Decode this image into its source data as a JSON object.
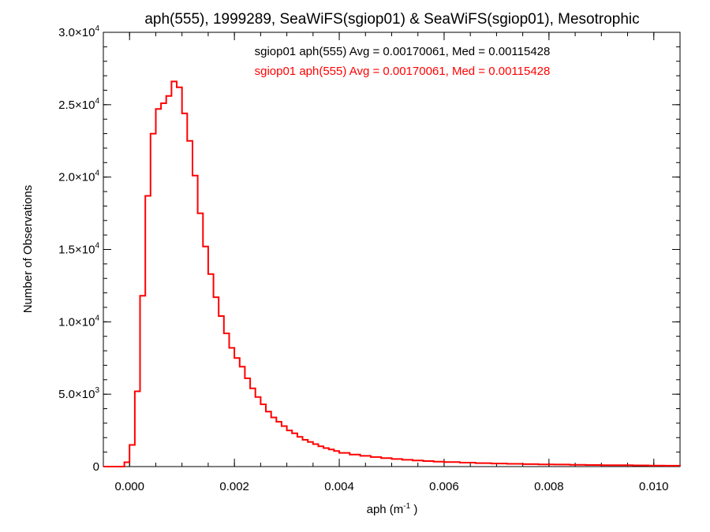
{
  "chart_data": {
    "type": "line",
    "style": "step-histogram",
    "title": "aph(555), 1999289, SeaWiFS(sgiop01) & SeaWiFS(sgiop01), Mesotrophic",
    "xlabel": "aph (m⁻¹)",
    "ylabel": "Number of Observations",
    "xlim": [
      -0.0005,
      0.0105
    ],
    "ylim": [
      0,
      30000
    ],
    "x_ticks": [
      {
        "value": 0.0,
        "label": "0.000"
      },
      {
        "value": 0.002,
        "label": "0.002"
      },
      {
        "value": 0.004,
        "label": "0.004"
      },
      {
        "value": 0.006,
        "label": "0.006"
      },
      {
        "value": 0.008,
        "label": "0.008"
      },
      {
        "value": 0.01,
        "label": "0.010"
      }
    ],
    "y_ticks": [
      {
        "value": 0,
        "mant": "0",
        "exp": ""
      },
      {
        "value": 5000,
        "mant": "5.0×10",
        "exp": "3"
      },
      {
        "value": 10000,
        "mant": "1.0×10",
        "exp": "4"
      },
      {
        "value": 15000,
        "mant": "1.5×10",
        "exp": "4"
      },
      {
        "value": 20000,
        "mant": "2.0×10",
        "exp": "4"
      },
      {
        "value": 25000,
        "mant": "2.5×10",
        "exp": "4"
      },
      {
        "value": 30000,
        "mant": "3.0×10",
        "exp": "4"
      }
    ],
    "annotations": [
      {
        "text": "sgiop01 aph(555) Avg = 0.00170061, Med = 0.00115428",
        "color": "#000000"
      },
      {
        "text": "sgiop01 aph(555) Avg = 0.00170061, Med = 0.00115428",
        "color": "#ff0000"
      }
    ],
    "series": [
      {
        "color": "#ff0000",
        "x": [
          -0.0005,
          -0.0001,
          0.0,
          0.0001,
          0.0002,
          0.0003,
          0.0004,
          0.0005,
          0.0006,
          0.0007,
          0.0008,
          0.0009,
          0.001,
          0.0011,
          0.0012,
          0.0013,
          0.0014,
          0.0015,
          0.0016,
          0.0017,
          0.0018,
          0.0019,
          0.002,
          0.0021,
          0.0022,
          0.0023,
          0.0024,
          0.0025,
          0.0026,
          0.0027,
          0.0028,
          0.0029,
          0.003,
          0.0031,
          0.0032,
          0.0033,
          0.0034,
          0.0035,
          0.0036,
          0.0037,
          0.0038,
          0.0039,
          0.004,
          0.0042,
          0.0044,
          0.0046,
          0.0048,
          0.005,
          0.0052,
          0.0054,
          0.0056,
          0.0058,
          0.006,
          0.0063,
          0.0066,
          0.0069,
          0.0072,
          0.0075,
          0.0078,
          0.0081,
          0.0084,
          0.0087,
          0.009,
          0.0093,
          0.0096,
          0.0099,
          0.0102,
          0.0105
        ],
        "values": [
          0,
          300,
          1500,
          5200,
          11800,
          18700,
          23000,
          24700,
          25100,
          25600,
          26600,
          26200,
          24400,
          22500,
          20100,
          17500,
          15200,
          13300,
          11700,
          10400,
          9200,
          8200,
          7500,
          6900,
          6100,
          5400,
          4800,
          4300,
          3800,
          3400,
          3100,
          2800,
          2500,
          2300,
          2050,
          1850,
          1700,
          1550,
          1400,
          1280,
          1180,
          1080,
          950,
          830,
          740,
          660,
          590,
          520,
          470,
          420,
          380,
          340,
          310,
          270,
          240,
          210,
          190,
          170,
          150,
          140,
          120,
          110,
          100,
          90,
          80,
          70,
          60,
          50
        ]
      }
    ]
  }
}
